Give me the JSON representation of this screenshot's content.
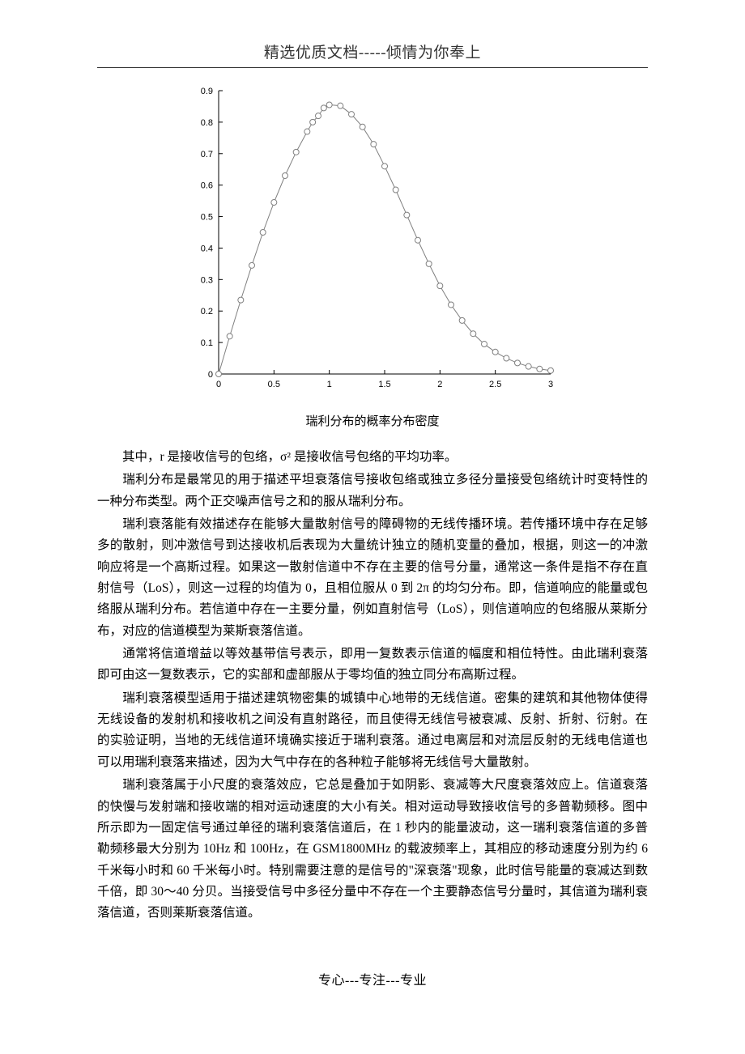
{
  "header": {
    "title": "精选优质文档-----倾情为你奉上"
  },
  "chart": {
    "type": "line",
    "caption": "瑞利分布的概率分布密度",
    "xlim": [
      0,
      3
    ],
    "ylim": [
      0,
      0.9
    ],
    "xticks": [
      0,
      0.5,
      1,
      1.5,
      2,
      2.5,
      3
    ],
    "yticks": [
      0,
      0.1,
      0.2,
      0.3,
      0.4,
      0.5,
      0.6,
      0.7,
      0.8,
      0.9
    ],
    "line_color": "#808080",
    "marker_edge_color": "#808080",
    "marker_fill_color": "#ffffff",
    "marker_size": 3.5,
    "line_width": 1,
    "axis_color": "#000000",
    "tick_fontsize": 11,
    "tick_color": "#000000",
    "background_color": "#ffffff",
    "grid": false,
    "points": [
      {
        "x": 0.0,
        "y": 0.0
      },
      {
        "x": 0.1,
        "y": 0.12
      },
      {
        "x": 0.2,
        "y": 0.235
      },
      {
        "x": 0.3,
        "y": 0.345
      },
      {
        "x": 0.4,
        "y": 0.45
      },
      {
        "x": 0.5,
        "y": 0.545
      },
      {
        "x": 0.6,
        "y": 0.63
      },
      {
        "x": 0.7,
        "y": 0.705
      },
      {
        "x": 0.8,
        "y": 0.77
      },
      {
        "x": 0.85,
        "y": 0.8
      },
      {
        "x": 0.9,
        "y": 0.82
      },
      {
        "x": 0.95,
        "y": 0.845
      },
      {
        "x": 1.0,
        "y": 0.855
      },
      {
        "x": 1.1,
        "y": 0.852
      },
      {
        "x": 1.2,
        "y": 0.825
      },
      {
        "x": 1.3,
        "y": 0.785
      },
      {
        "x": 1.4,
        "y": 0.73
      },
      {
        "x": 1.5,
        "y": 0.66
      },
      {
        "x": 1.6,
        "y": 0.585
      },
      {
        "x": 1.7,
        "y": 0.505
      },
      {
        "x": 1.8,
        "y": 0.425
      },
      {
        "x": 1.9,
        "y": 0.35
      },
      {
        "x": 2.0,
        "y": 0.28
      },
      {
        "x": 2.1,
        "y": 0.22
      },
      {
        "x": 2.2,
        "y": 0.17
      },
      {
        "x": 2.3,
        "y": 0.128
      },
      {
        "x": 2.4,
        "y": 0.095
      },
      {
        "x": 2.5,
        "y": 0.07
      },
      {
        "x": 2.6,
        "y": 0.05
      },
      {
        "x": 2.7,
        "y": 0.035
      },
      {
        "x": 2.8,
        "y": 0.024
      },
      {
        "x": 2.9,
        "y": 0.016
      },
      {
        "x": 3.0,
        "y": 0.011
      }
    ]
  },
  "paragraphs": {
    "p1": "其中，r 是接收信号的包络，σ² 是接收信号包络的平均功率。",
    "p2": "瑞利分布是最常见的用于描述平坦衰落信号接收包络或独立多径分量接受包络统计时变特性的一种分布类型。两个正交噪声信号之和的服从瑞利分布。",
    "p3": "瑞利衰落能有效描述存在能够大量散射信号的障碍物的无线传播环境。若传播环境中存在足够多的散射，则冲激信号到达接收机后表现为大量统计独立的随机变量的叠加，根据，则这一的冲激响应将是一个高斯过程。如果这一散射信道中不存在主要的信号分量，通常这一条件是指不存在直射信号（LoS），则这一过程的均值为 0，且相位服从 0 到 2π 的均匀分布。即，信道响应的能量或包络服从瑞利分布。若信道中存在一主要分量，例如直射信号（LoS），则信道响应的包络服从莱斯分布，对应的信道模型为莱斯衰落信道。",
    "p4": "通常将信道增益以等效基带信号表示，即用一复数表示信道的幅度和相位特性。由此瑞利衰落即可由这一复数表示，它的实部和虚部服从于零均值的独立同分布高斯过程。",
    "p5": "瑞利衰落模型适用于描述建筑物密集的城镇中心地带的无线信道。密集的建筑和其他物体使得无线设备的发射机和接收机之间没有直射路径，而且使得无线信号被衰减、反射、折射、衍射。在的实验证明，当地的无线信道环境确实接近于瑞利衰落。通过电离层和对流层反射的无线电信道也可以用瑞利衰落来描述，因为大气中存在的各种粒子能够将无线信号大量散射。",
    "p6": "瑞利衰落属于小尺度的衰落效应，它总是叠加于如阴影、衰减等大尺度衰落效应上。信道衰落的快慢与发射端和接收端的相对运动速度的大小有关。相对运动导致接收信号的多普勒频移。图中所示即为一固定信号通过单径的瑞利衰落信道后，在 1 秒内的能量波动，这一瑞利衰落信道的多普勒频移最大分别为 10Hz 和 100Hz，在 GSM1800MHz 的载波频率上，其相应的移动速度分别为约 6 千米每小时和 60 千米每小时。特别需要注意的是信号的\"深衰落\"现象，此时信号能量的衰减达到数千倍，即 30～40 分贝。当接受信号中多径分量中不存在一个主要静态信号分量时，其信道为瑞利衰落信道，否则莱斯衰落信道。"
  },
  "footer": {
    "text": "专心---专注---专业"
  }
}
